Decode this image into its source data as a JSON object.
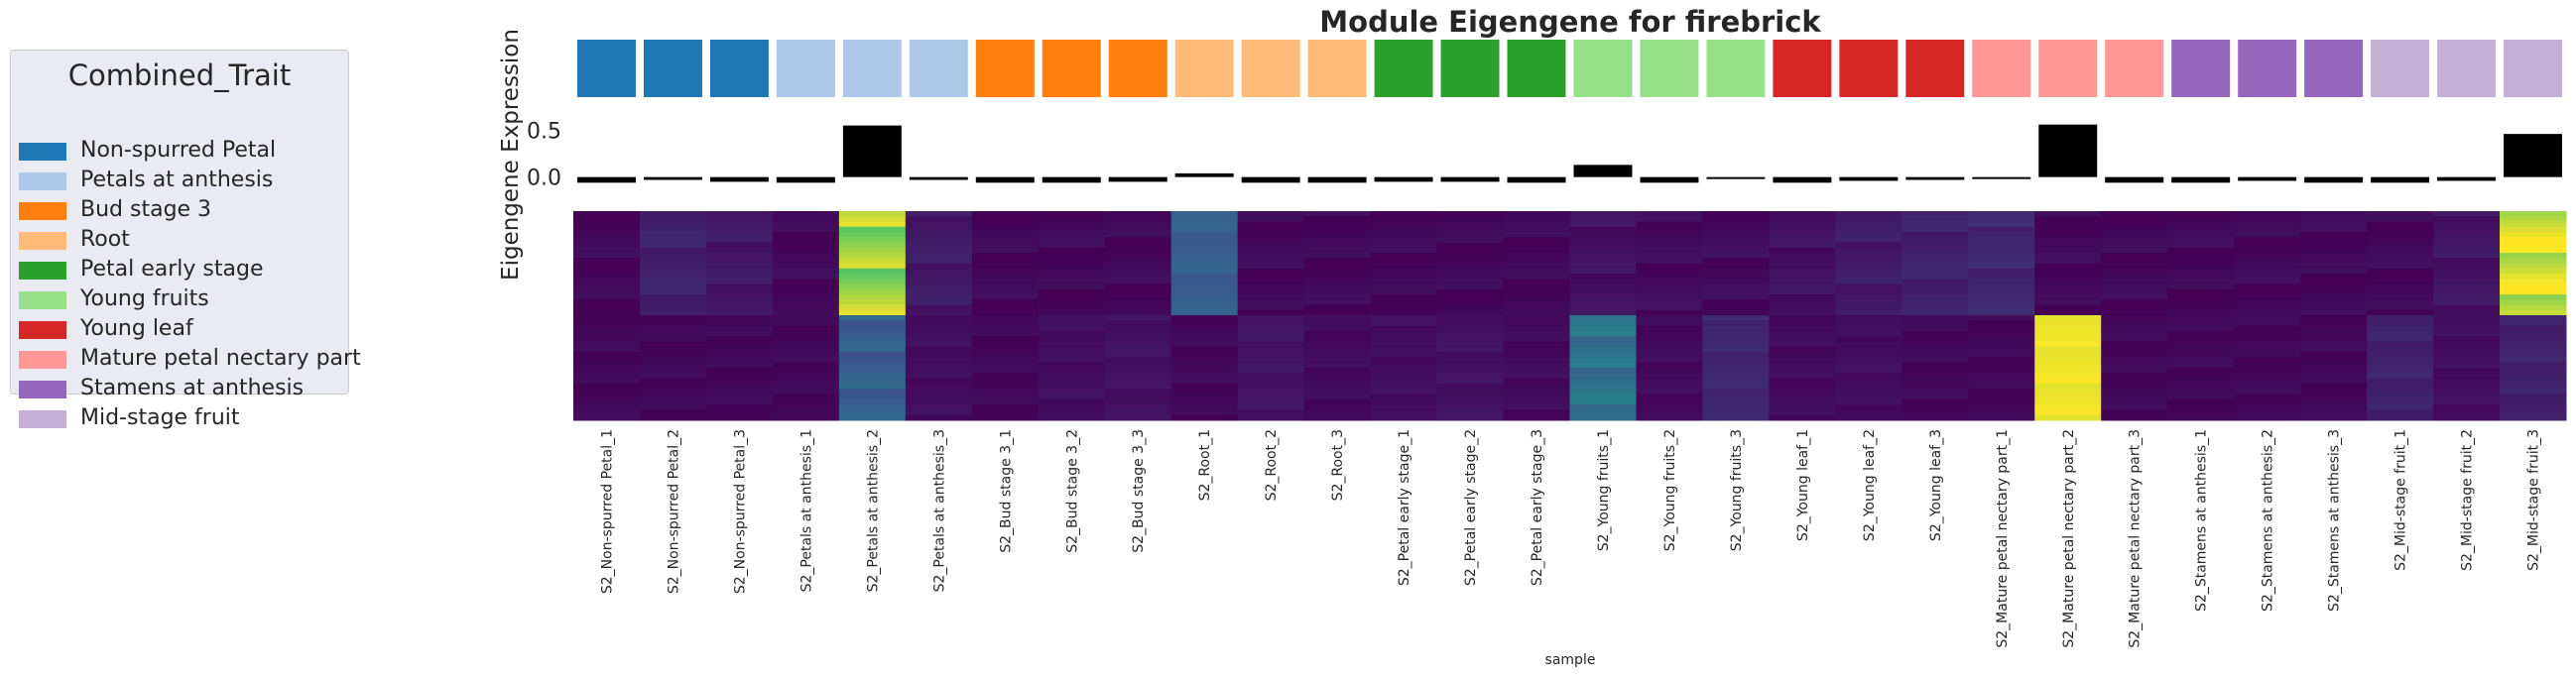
{
  "chart_data": {
    "type": "heatmap",
    "title": "Module Eigengene for firebrick",
    "ylabel": "Eigengene Expression",
    "xlabel": "sample",
    "yticks": [
      "0.5",
      "0.0"
    ],
    "bar_ylim": [
      -0.12,
      0.62
    ],
    "legend": {
      "title": "Combined_Trait",
      "placement": "left",
      "items": [
        {
          "label": "Non-spurred Petal",
          "color": "#1f77b4"
        },
        {
          "label": "Petals at anthesis",
          "color": "#aec7e8"
        },
        {
          "label": "Bud stage 3",
          "color": "#ff7f0e"
        },
        {
          "label": "Root",
          "color": "#ffbb78"
        },
        {
          "label": "Petal early stage",
          "color": "#2ca02c"
        },
        {
          "label": "Young fruits",
          "color": "#98df8a"
        },
        {
          "label": "Young leaf",
          "color": "#d62728"
        },
        {
          "label": "Mature petal nectary part",
          "color": "#ff9896"
        },
        {
          "label": "Stamens at anthesis",
          "color": "#9467bd"
        },
        {
          "label": "Mid-stage fruit",
          "color": "#c5b0d5"
        }
      ]
    },
    "samples": [
      "S2_Non-spurred Petal_1",
      "S2_Non-spurred Petal_2",
      "S2_Non-spurred Petal_3",
      "S2_Petals at anthesis_1",
      "S2_Petals at anthesis_2",
      "S2_Petals at anthesis_3",
      "S2_Bud stage 3_1",
      "S2_Bud stage 3_2",
      "S2_Bud stage 3_3",
      "S2_Root_1",
      "S2_Root_2",
      "S2_Root_3",
      "S2_Petal early stage_1",
      "S2_Petal early stage_2",
      "S2_Petal early stage_3",
      "S2_Young fruits_1",
      "S2_Young fruits_2",
      "S2_Young fruits_3",
      "S2_Young leaf_1",
      "S2_Young leaf_2",
      "S2_Young leaf_3",
      "S2_Mature petal nectary part_1",
      "S2_Mature petal nectary part_2",
      "S2_Mature petal nectary part_3",
      "S2_Stamens at anthesis_1",
      "S2_Stamens at anthesis_2",
      "S2_Stamens at anthesis_3",
      "S2_Mid-stage fruit_1",
      "S2_Mid-stage fruit_2",
      "S2_Mid-stage fruit_3"
    ],
    "sample_trait_index": [
      0,
      0,
      0,
      1,
      1,
      1,
      2,
      2,
      2,
      3,
      3,
      3,
      4,
      4,
      4,
      5,
      5,
      5,
      6,
      6,
      6,
      7,
      7,
      7,
      8,
      8,
      8,
      9,
      9,
      9
    ],
    "eigengene_values": [
      -0.06,
      -0.03,
      -0.05,
      -0.06,
      0.55,
      -0.03,
      -0.06,
      -0.06,
      -0.05,
      0.04,
      -0.06,
      -0.06,
      -0.05,
      -0.05,
      -0.06,
      0.13,
      -0.06,
      -0.02,
      -0.06,
      -0.04,
      -0.03,
      -0.01,
      0.56,
      -0.06,
      -0.06,
      -0.04,
      -0.06,
      -0.06,
      -0.04,
      0.46
    ],
    "heatmap_colormap": "viridis",
    "heatmap_top_block": [
      0.02,
      0.1,
      0.07,
      0.02,
      0.85,
      0.08,
      0.02,
      0.02,
      0.02,
      0.3,
      0.02,
      0.02,
      0.02,
      0.02,
      0.02,
      0.05,
      0.03,
      0.03,
      0.05,
      0.08,
      0.1,
      0.12,
      0.02,
      0.02,
      0.02,
      0.02,
      0.02,
      0.02,
      0.06,
      0.95
    ],
    "heatmap_bottom_block": [
      0.02,
      0.02,
      0.02,
      0.02,
      0.3,
      0.04,
      0.02,
      0.04,
      0.05,
      0.02,
      0.06,
      0.03,
      0.04,
      0.05,
      0.03,
      0.38,
      0.03,
      0.12,
      0.03,
      0.04,
      0.02,
      0.02,
      0.98,
      0.02,
      0.02,
      0.02,
      0.02,
      0.1,
      0.04,
      0.1
    ]
  }
}
